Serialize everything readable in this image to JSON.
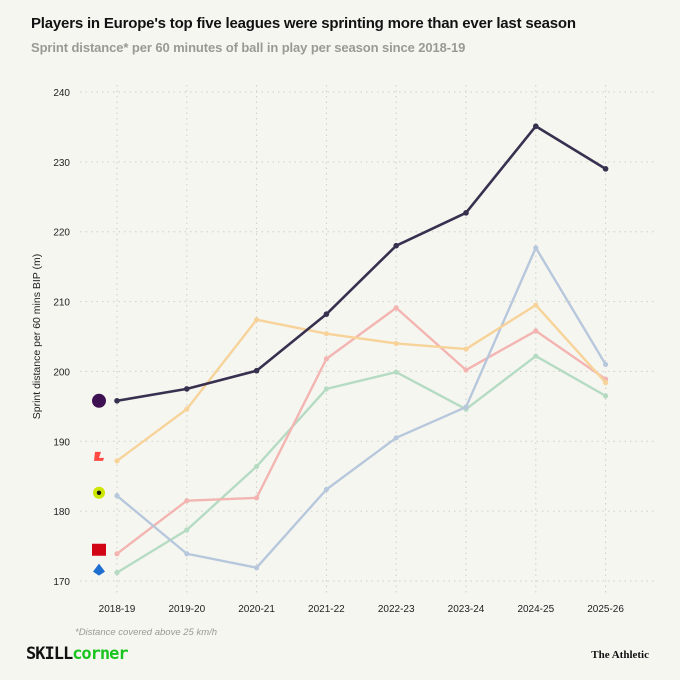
{
  "title": "Players in Europe's top five leagues were sprinting more than ever last season",
  "subtitle": "Sprint distance* per 60 minutes of ball in play per season since 2018-19",
  "footnote": "*Distance covered above 25 km/h",
  "brand_left": {
    "part1": "SKILL",
    "part2": "corner"
  },
  "brand_right": "The Athletic",
  "chart_data": {
    "type": "line",
    "title": "Players in Europe's top five leagues were sprinting more than ever last season",
    "xlabel": "",
    "ylabel": "Sprint distance per 60 mins BIP (m)",
    "ylim": [
      170,
      240
    ],
    "yticks": [
      170,
      180,
      190,
      200,
      210,
      220,
      230,
      240
    ],
    "grid": true,
    "legend": "logos at left of first point",
    "categories": [
      "2018-19",
      "2019-20",
      "2020-21",
      "2021-22",
      "2022-23",
      "2023-24",
      "2024-25",
      "2025-26"
    ],
    "series": [
      {
        "logo": "Premier League",
        "color": "#37304f",
        "values": [
          195.8,
          197.5,
          200.1,
          208.2,
          218.0,
          222.7,
          235.1,
          229.0
        ]
      },
      {
        "logo": "LaLiga",
        "color": "#f7d39a",
        "values": [
          187.2,
          194.6,
          207.4,
          205.4,
          204.0,
          203.2,
          209.5,
          198.4
        ]
      },
      {
        "logo": "Ligue 1",
        "color": "#b7c7dc",
        "values": [
          182.2,
          173.9,
          171.9,
          183.1,
          190.5,
          194.9,
          217.7,
          201.0
        ]
      },
      {
        "logo": "Bundesliga",
        "color": "#f3b5b1",
        "values": [
          173.9,
          181.5,
          181.9,
          201.8,
          209.1,
          200.2,
          205.8,
          198.9
        ]
      },
      {
        "logo": "Serie A",
        "color": "#b5dbc3",
        "values": [
          171.2,
          177.3,
          186.4,
          197.5,
          199.9,
          194.6,
          202.2,
          196.5
        ]
      }
    ]
  }
}
